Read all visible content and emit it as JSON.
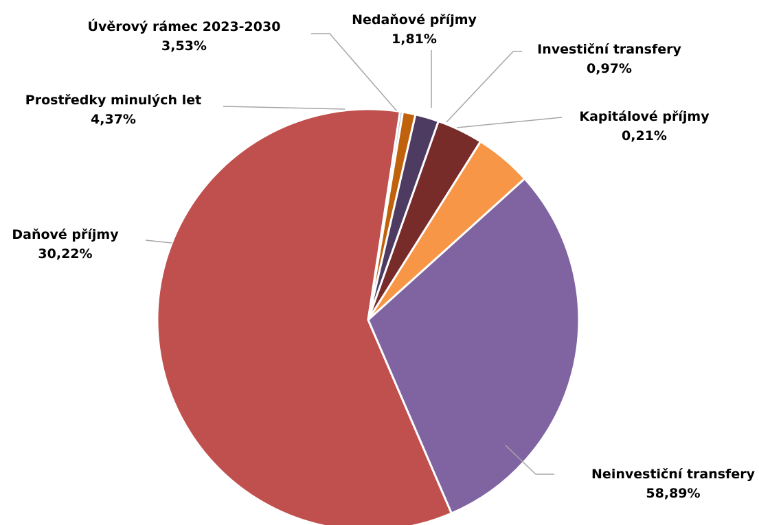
{
  "chart_data": {
    "type": "pie",
    "title": "",
    "slices": [
      {
        "name": "Neinvestiční transfery",
        "value": 58.89,
        "value_label": "58,89%",
        "color": "#c0504d"
      },
      {
        "name": "Daňové příjmy",
        "value": 30.22,
        "value_label": "30,22%",
        "color": "#8064a2"
      },
      {
        "name": "Prostředky minulých let",
        "value": 4.37,
        "value_label": "4,37%",
        "color": "#f79646"
      },
      {
        "name": "Úvěrový rámec 2023-2030",
        "value": 3.53,
        "value_label": "3,53%",
        "color": "#772c2a"
      },
      {
        "name": "Nedaňové příjmy",
        "value": 1.81,
        "value_label": "1,81%",
        "color": "#4d3b62"
      },
      {
        "name": "Investiční transfery",
        "value": 0.97,
        "value_label": "0,97%",
        "color": "#c0620c"
      },
      {
        "name": "Kapitálové příjmy",
        "value": 0.21,
        "value_label": "0,21%",
        "color": "#a9b9d3"
      }
    ],
    "data_labels": "category name and percentage",
    "legend": "none",
    "start": "clockwise from top"
  }
}
